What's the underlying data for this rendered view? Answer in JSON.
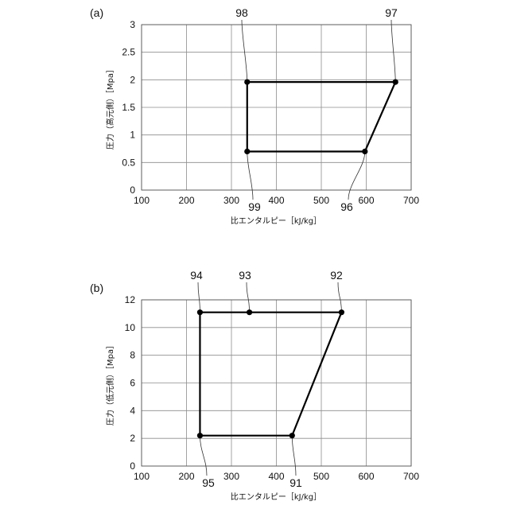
{
  "chart_data": [
    {
      "panel": "(a)",
      "type": "line",
      "xlabel": "比エンタルピー［kJ/kg］",
      "ylabel": "圧力（高元側）［Mpa］",
      "xlim": [
        100,
        700
      ],
      "ylim": [
        0,
        3
      ],
      "xticks": [
        "100",
        "200",
        "300",
        "400",
        "500",
        "600",
        "700"
      ],
      "yticks": [
        "0",
        "0.5",
        "1",
        "1.5",
        "2",
        "2.5",
        "3"
      ],
      "grid": true,
      "points": [
        {
          "ref": "97",
          "x": 665,
          "y": 1.96
        },
        {
          "ref": "98",
          "x": 335,
          "y": 1.96
        },
        {
          "ref": "99",
          "x": 335,
          "y": 0.7
        },
        {
          "ref": "96",
          "x": 597,
          "y": 0.7
        }
      ]
    },
    {
      "panel": "(b)",
      "type": "line",
      "xlabel": "比エンタルピー［kJ/kg］",
      "ylabel": "圧力（低元側）［Mpa］",
      "xlim": [
        100,
        700
      ],
      "ylim": [
        0,
        12
      ],
      "xticks": [
        "100",
        "200",
        "300",
        "400",
        "500",
        "600",
        "700"
      ],
      "yticks": [
        "0",
        "2",
        "4",
        "6",
        "8",
        "10",
        "12"
      ],
      "grid": true,
      "points": [
        {
          "ref": "92",
          "x": 545,
          "y": 11.1
        },
        {
          "ref": "93",
          "x": 340,
          "y": 11.1
        },
        {
          "ref": "94",
          "x": 230,
          "y": 11.1
        },
        {
          "ref": "95",
          "x": 230,
          "y": 2.2
        },
        {
          "ref": "91",
          "x": 435,
          "y": 2.2
        }
      ]
    }
  ]
}
